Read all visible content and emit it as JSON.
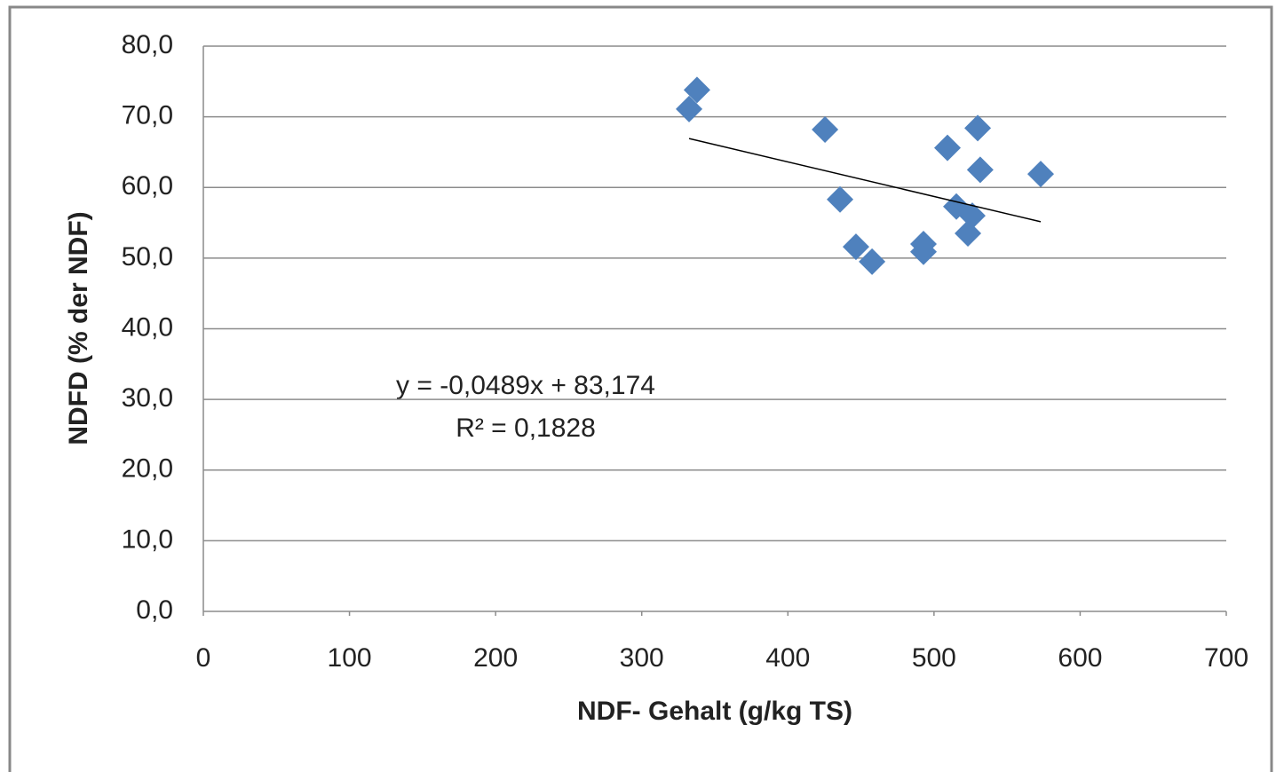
{
  "chart_data": {
    "type": "scatter",
    "x_label": "NDF- Gehalt (g/kg TS)",
    "y_label": "NDFD (% der NDF)",
    "color": "#4f81bd",
    "xlim": [
      0,
      700
    ],
    "xticks": [
      0,
      100,
      200,
      300,
      400,
      500,
      600,
      700
    ],
    "ylim": [
      0,
      80
    ],
    "yticks": [
      {
        "value": 0,
        "label": "0,0"
      },
      {
        "value": 10,
        "label": "10,0"
      },
      {
        "value": 20,
        "label": "20,0"
      },
      {
        "value": 30,
        "label": "30,0"
      },
      {
        "value": 40,
        "label": "40,0"
      },
      {
        "value": 50,
        "label": "50,0"
      },
      {
        "value": 60,
        "label": "60,0"
      },
      {
        "value": 70,
        "label": "70,0"
      },
      {
        "value": 80,
        "label": "80,0"
      }
    ],
    "grid": true,
    "x": [
      332.4,
      337.8,
      425.4,
      435.7,
      446.6,
      457.6,
      492.8,
      492.8,
      509.2,
      515.3,
      523.2,
      526.2,
      529.9,
      531.6,
      573.0
    ],
    "values": [
      71.1,
      73.8,
      68.2,
      58.3,
      51.6,
      49.5,
      52.0,
      50.9,
      65.6,
      57.3,
      53.5,
      56.0,
      68.4,
      62.5,
      61.9
    ],
    "trendline": {
      "slope": -0.0489,
      "intercept": 83.174,
      "equation_label": "y = -0,0489x + 83,174",
      "r2_label": "R² = 0,1828"
    }
  }
}
